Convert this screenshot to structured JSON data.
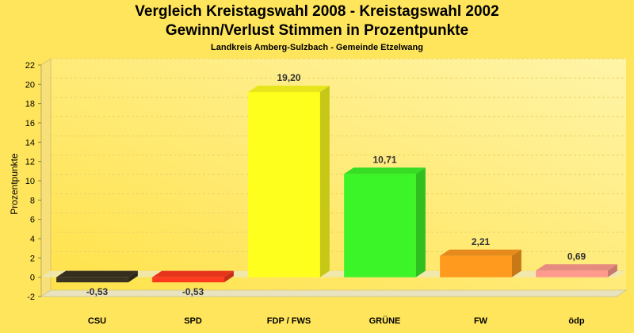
{
  "chart_data": {
    "type": "bar",
    "title": "Vergleich Kreistagswahl 2008 - Kreistagswahl 2002",
    "subtitle_line": "Gewinn/Verlust Stimmen in Prozentpunkte",
    "caption": "Landkreis Amberg-Sulzbach - Gemeinde Etzelwang",
    "xlabel": "",
    "ylabel": "Prozentpunkte",
    "ylim": [
      -2,
      22
    ],
    "yticks": [
      -2,
      0,
      2,
      4,
      6,
      8,
      10,
      12,
      14,
      16,
      18,
      20,
      22
    ],
    "grid": true,
    "categories": [
      "CSU",
      "SPD",
      "FDP / FWS",
      "GRÜNE",
      "FW",
      "ödp"
    ],
    "values": [
      -0.53,
      -0.53,
      19.2,
      10.71,
      2.21,
      0.69
    ],
    "value_labels": [
      "-0,53",
      "-0,53",
      "19,20",
      "10,71",
      "2,21",
      "0,69"
    ],
    "colors": [
      "#3b3322",
      "#ff3b1f",
      "#ffff1e",
      "#3cf528",
      "#ff9a1e",
      "#ff9a8e"
    ]
  }
}
